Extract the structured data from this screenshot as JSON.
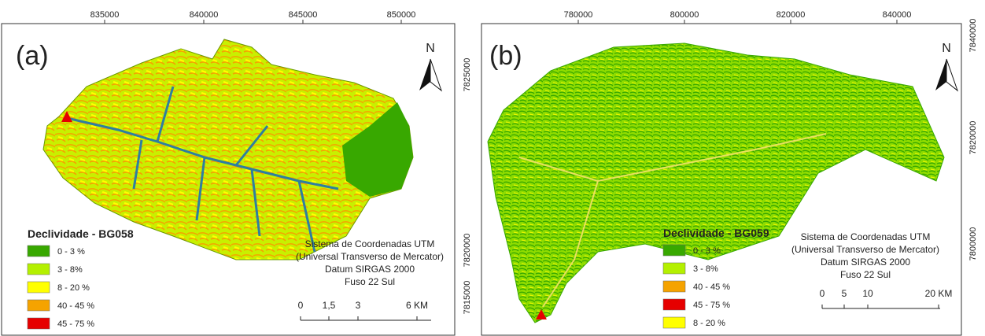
{
  "panels": [
    {
      "label": "(a)",
      "x_ticks": [
        "835000",
        "840000",
        "845000",
        "850000"
      ],
      "y_ticks": [
        "7825000",
        "7820000",
        "7815000"
      ],
      "north": "N",
      "legend": {
        "title": "Declividade - BG058",
        "items": [
          {
            "label": "0 - 3 %",
            "color": "#38a800"
          },
          {
            "label": "3 - 8%",
            "color": "#b4f000"
          },
          {
            "label": "8 - 20 %",
            "color": "#ffff00"
          },
          {
            "label": "40 - 45 %",
            "color": "#f5a300"
          },
          {
            "label": "45 - 75 %",
            "color": "#e60000"
          }
        ]
      },
      "crs": [
        "Sistema de Coordenadas UTM",
        "(Universal Transverso de Mercator)",
        "Datum SIRGAS 2000",
        "Fuso 22 Sul"
      ],
      "scale": [
        "0",
        "1,5",
        "3",
        "6 KM"
      ]
    },
    {
      "label": "(b)",
      "x_ticks": [
        "780000",
        "800000",
        "820000",
        "840000"
      ],
      "y_ticks": [
        "7840000",
        "7820000",
        "7800000"
      ],
      "north": "N",
      "legend": {
        "title": "Declividade - BG059",
        "items": [
          {
            "label": "0 - 3 %",
            "color": "#38a800"
          },
          {
            "label": "3 - 8%",
            "color": "#b4f000"
          },
          {
            "label": "40 - 45 %",
            "color": "#f5a300"
          },
          {
            "label": "45 - 75 %",
            "color": "#e60000"
          },
          {
            "label": "8 - 20 %",
            "color": "#ffff00"
          }
        ]
      },
      "crs": [
        "Sistema de Coordenadas UTM",
        "(Universal Transverso de Mercator)",
        "Datum SIRGAS 2000",
        "Fuso 22 Sul"
      ],
      "scale": [
        "0",
        "5",
        "10",
        "20 KM"
      ]
    }
  ]
}
